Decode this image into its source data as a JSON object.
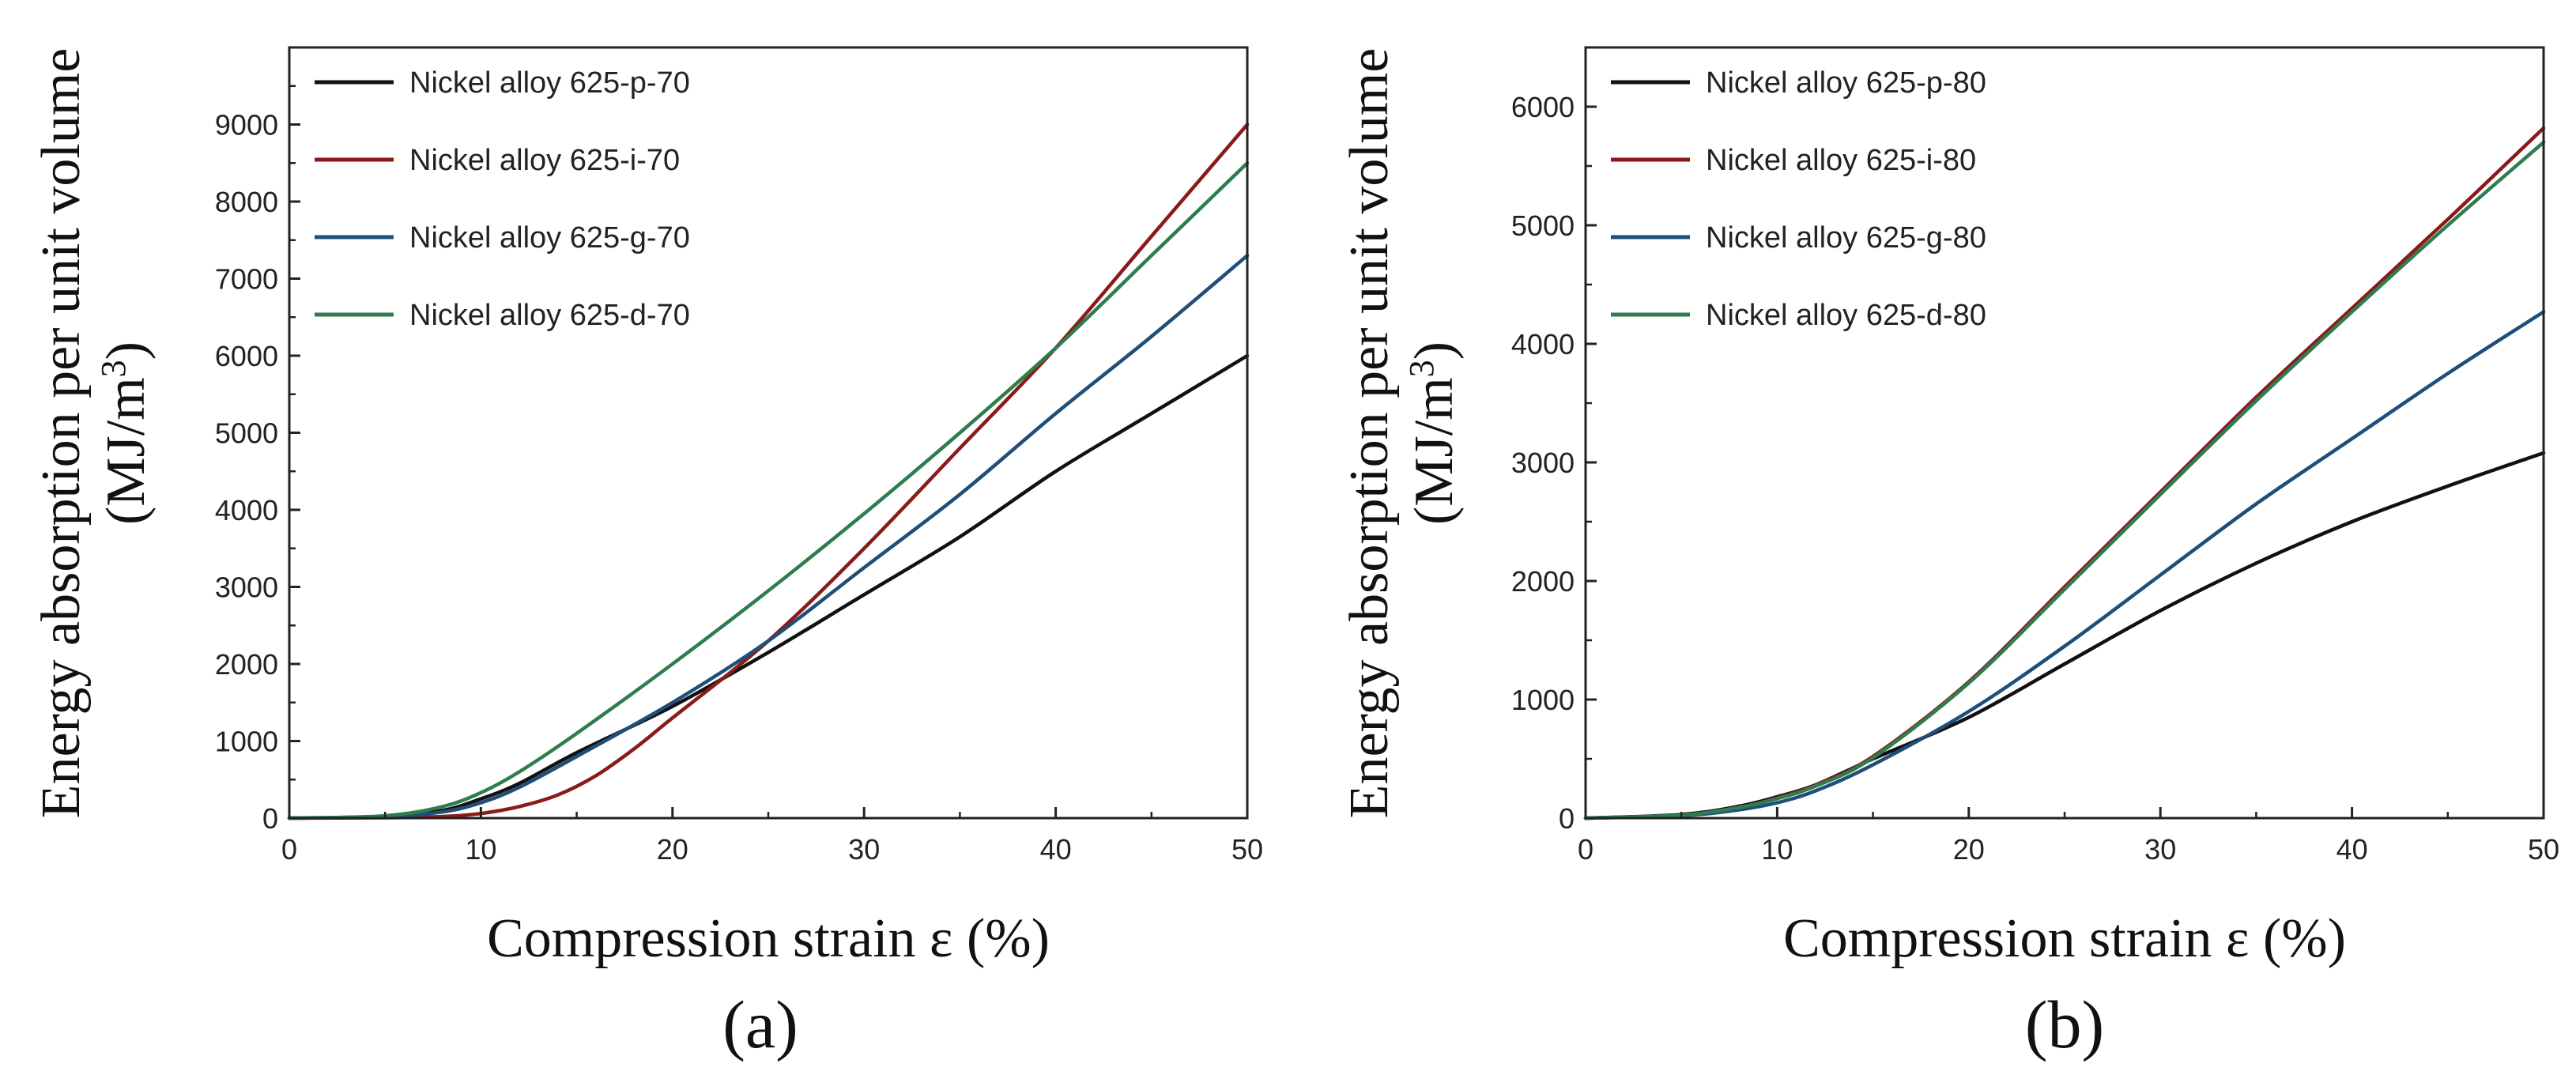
{
  "chart_data": [
    {
      "type": "line",
      "panel_label": "(a)",
      "xlabel": "Compression strain ε (%)",
      "ylabel_line1": "Energy absorption per unit volume",
      "ylabel_unit": "(MJ/m",
      "ylabel_unit_sup": "3",
      "ylabel_unit_close": ")",
      "xlim": [
        0,
        50
      ],
      "ylim": [
        0,
        10000
      ],
      "xticks": [
        0,
        10,
        20,
        30,
        40,
        50
      ],
      "yticks": [
        0,
        1000,
        2000,
        3000,
        4000,
        5000,
        6000,
        7000,
        8000,
        9000
      ],
      "legend_position": "top-left",
      "series": [
        {
          "name": "Nickel alloy 625-p-70",
          "color": "#111111",
          "x": [
            0,
            5,
            8,
            10,
            12,
            15,
            20,
            25,
            30,
            35,
            40,
            45,
            50
          ],
          "y": [
            0,
            20,
            100,
            250,
            450,
            850,
            1450,
            2150,
            2900,
            3650,
            4500,
            5250,
            6000
          ]
        },
        {
          "name": "Nickel alloy 625-i-70",
          "color": "#8b1a1a",
          "x": [
            0,
            5,
            8,
            10,
            12,
            14,
            16,
            18,
            20,
            25,
            30,
            35,
            40,
            45,
            50
          ],
          "y": [
            0,
            5,
            20,
            60,
            150,
            300,
            550,
            900,
            1300,
            2300,
            3500,
            4800,
            6100,
            7550,
            9000
          ]
        },
        {
          "name": "Nickel alloy 625-g-70",
          "color": "#1f4e79",
          "x": [
            0,
            5,
            8,
            10,
            12,
            15,
            20,
            25,
            30,
            35,
            40,
            45,
            50
          ],
          "y": [
            0,
            20,
            80,
            200,
            400,
            800,
            1500,
            2300,
            3250,
            4200,
            5250,
            6250,
            7300
          ]
        },
        {
          "name": "Nickel alloy 625-d-70",
          "color": "#2e7d4f",
          "x": [
            0,
            5,
            8,
            10,
            12,
            15,
            20,
            25,
            30,
            35,
            40,
            45,
            50
          ],
          "y": [
            0,
            30,
            150,
            330,
            600,
            1100,
            2000,
            2950,
            3950,
            5000,
            6100,
            7300,
            8500
          ]
        }
      ]
    },
    {
      "type": "line",
      "panel_label": "(b)",
      "xlabel": "Compression strain ε (%)",
      "ylabel_line1": "Energy absorption per unit volume",
      "ylabel_unit": "(MJ/m",
      "ylabel_unit_sup": "3",
      "ylabel_unit_close": ")",
      "xlim": [
        0,
        50
      ],
      "ylim": [
        0,
        6500
      ],
      "xticks": [
        0,
        10,
        20,
        30,
        40,
        50
      ],
      "yticks": [
        0,
        1000,
        2000,
        3000,
        4000,
        5000,
        6000
      ],
      "legend_position": "top-left",
      "series": [
        {
          "name": "Nickel alloy 625-p-80",
          "color": "#111111",
          "x": [
            0,
            5,
            8,
            10,
            12,
            15,
            20,
            25,
            30,
            35,
            40,
            45,
            50
          ],
          "y": [
            0,
            30,
            100,
            180,
            280,
            500,
            850,
            1300,
            1750,
            2150,
            2500,
            2800,
            3080
          ]
        },
        {
          "name": "Nickel alloy 625-i-80",
          "color": "#8b1a1a",
          "x": [
            0,
            5,
            8,
            10,
            12,
            15,
            20,
            25,
            30,
            35,
            40,
            45,
            50
          ],
          "y": [
            0,
            25,
            90,
            170,
            280,
            520,
            1150,
            1950,
            2750,
            3550,
            4300,
            5050,
            5820
          ]
        },
        {
          "name": "Nickel alloy 625-g-80",
          "color": "#1f4e79",
          "x": [
            0,
            5,
            8,
            10,
            12,
            15,
            20,
            25,
            30,
            35,
            40,
            45,
            50
          ],
          "y": [
            0,
            20,
            70,
            130,
            230,
            450,
            900,
            1450,
            2050,
            2650,
            3200,
            3750,
            4270
          ]
        },
        {
          "name": "Nickel alloy 625-d-80",
          "color": "#2e7d4f",
          "x": [
            0,
            5,
            8,
            10,
            12,
            15,
            20,
            25,
            30,
            35,
            40,
            45,
            50
          ],
          "y": [
            0,
            25,
            90,
            165,
            270,
            510,
            1140,
            1930,
            2730,
            3520,
            4270,
            5000,
            5700
          ]
        }
      ]
    }
  ]
}
